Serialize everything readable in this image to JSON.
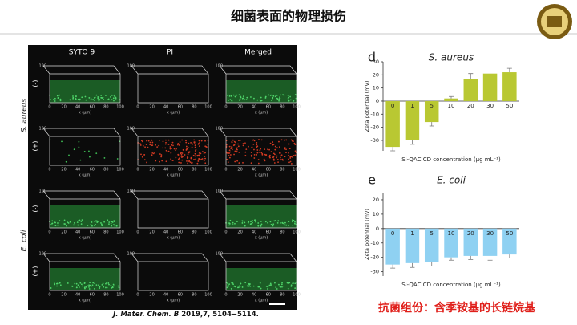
{
  "slide": {
    "title": "细菌表面的物理损伤",
    "citation_journal": "J. Mater. Chem. B",
    "citation_rest": " 2019,7, 5104−5114.",
    "conclusion": "抗菌组份：含季铵基的长链烷基"
  },
  "micrographs": {
    "columns": [
      "SYTO 9",
      "PI",
      "Merged"
    ],
    "species": [
      "S. aureus",
      "E. coli"
    ],
    "treatments": [
      "(-)",
      "(+)"
    ],
    "x_axis_label": "x (μm)",
    "x_ticks": [
      0,
      20,
      40,
      60,
      80,
      100
    ],
    "z_tick": 100
  },
  "chart_data": [
    {
      "type": "bar",
      "panel": "d",
      "title": "S. aureus",
      "y_label": "Zeta potential (mV)",
      "x_label": "Si-QAC CD concentration (μg mL⁻¹)",
      "categories": [
        "0",
        "1",
        "5",
        "10",
        "20",
        "30",
        "50"
      ],
      "values": [
        -35,
        -30,
        -16,
        2,
        17,
        21,
        22
      ],
      "errors": [
        3,
        3,
        3,
        1.5,
        4,
        5,
        3
      ],
      "color": "#b9c832",
      "ylim": [
        -38,
        30
      ],
      "yticks": [
        -30,
        -20,
        -10,
        0,
        10,
        20,
        30
      ]
    },
    {
      "type": "bar",
      "panel": "e",
      "title": "E. coli",
      "y_label": "Zeta potential (mV)",
      "x_label": "Si-QAC CD concentration (μg mL⁻¹)",
      "categories": [
        "0",
        "1",
        "5",
        "10",
        "20",
        "30",
        "50"
      ],
      "values": [
        -25,
        -24,
        -23,
        -20,
        -19,
        -19,
        -18
      ],
      "errors": [
        2.5,
        3,
        3,
        2,
        2.5,
        3,
        2.5
      ],
      "color": "#8fd1f2",
      "ylim": [
        -33,
        25
      ],
      "yticks": [
        -30,
        -20,
        -10,
        0,
        10,
        20
      ]
    }
  ]
}
